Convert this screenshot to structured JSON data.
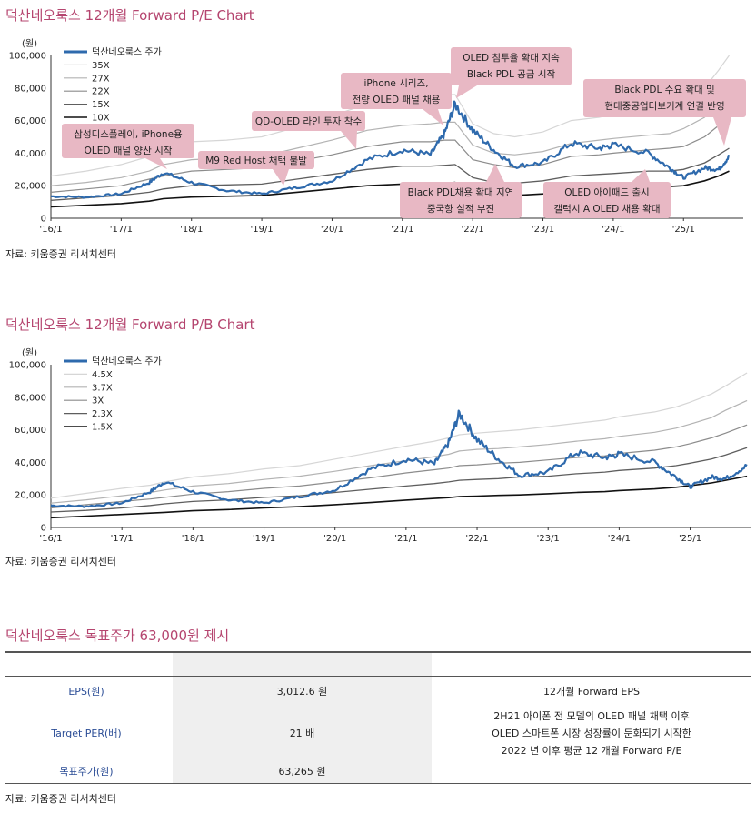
{
  "pe_chart": {
    "title": "덕산네오룩스  12개월  Forward P/E Chart",
    "unit": "(원)",
    "source": "자료: 키움증권 리서치센터",
    "callouts": [
      [
        "삼성디스플레이,  iPhone용",
        "OLED 패널 양산 시작"
      ],
      [
        "M9 Red Host 채택 불발"
      ],
      [
        "QD-OLED 라인 투자 착수"
      ],
      [
        "iPhone 시리즈,",
        "전량 OLED 패널 채용"
      ],
      [
        "OLED 침투율 확대 지속",
        "Black PDL 공급 시작"
      ],
      [
        "Black PDL 수요 확대 및",
        "현대중공업터보기계  연결 반영"
      ],
      [
        "Black PDL채용 확대 지연",
        "중국향 실적 부진"
      ],
      [
        "OLED 아이패드 출시",
        "갤럭시 A OLED 채용 확대"
      ]
    ]
  },
  "pb_chart": {
    "title": "덕산네오룩스  12개월  Forward P/B Chart",
    "unit": "(원)",
    "source": "자료: 키움증권 리서치센터"
  },
  "chart_data": [
    {
      "type": "line",
      "title": "덕산네오룩스  12개월  Forward P/E Chart",
      "ylabel": "(원)",
      "ylim": [
        0,
        100000
      ],
      "yticks": [
        "0",
        "20,000",
        "40,000",
        "60,000",
        "80,000",
        "100,000"
      ],
      "x_tick_labels": [
        "'16/1",
        "'17/1",
        "'18/1",
        "'19/1",
        "'20/1",
        "'21/1",
        "'22/1",
        "'23/1",
        "'24/1",
        "'25/1"
      ],
      "x": [
        2016.0,
        2016.5,
        2017.0,
        2017.4,
        2017.6,
        2018.0,
        2018.5,
        2019.0,
        2019.5,
        2020.0,
        2020.5,
        2021.0,
        2021.4,
        2021.6,
        2021.75,
        2022.0,
        2022.3,
        2022.6,
        2023.0,
        2023.4,
        2023.8,
        2024.0,
        2024.5,
        2024.8,
        2025.0,
        2025.3,
        2025.5,
        2025.65
      ],
      "series": [
        {
          "name": "덕산네오룩스  주가",
          "values": [
            13500,
            13000,
            15000,
            22000,
            28000,
            22000,
            17000,
            15000,
            19000,
            23000,
            36000,
            42000,
            39000,
            52000,
            70000,
            54000,
            42000,
            32000,
            34000,
            46000,
            43000,
            45000,
            40000,
            31000,
            25000,
            31000,
            30000,
            38000
          ]
        },
        {
          "name": "35X",
          "values": [
            26000,
            29000,
            33000,
            38000,
            42000,
            47000,
            48000,
            50000,
            56000,
            63000,
            70000,
            74000,
            75000,
            76000,
            76000,
            58000,
            52000,
            50000,
            53000,
            60000,
            62000,
            64000,
            66000,
            68000,
            71000,
            80000,
            91000,
            100000
          ]
        },
        {
          "name": "27X",
          "values": [
            20000,
            22000,
            25000,
            29000,
            33000,
            36000,
            37000,
            38000,
            43000,
            48000,
            54000,
            57000,
            58000,
            59000,
            59000,
            45000,
            40000,
            39000,
            41000,
            46000,
            48000,
            49000,
            51000,
            52000,
            55000,
            62000,
            70000,
            77000
          ]
        },
        {
          "name": "22X",
          "values": [
            16000,
            18000,
            20000,
            24000,
            26000,
            29000,
            30000,
            31000,
            35000,
            39000,
            44000,
            47000,
            47000,
            48000,
            48000,
            36000,
            33000,
            31000,
            33000,
            38000,
            39000,
            40000,
            42000,
            43000,
            44000,
            50000,
            57000,
            63000
          ]
        },
        {
          "name": "15X",
          "values": [
            11000,
            12500,
            14000,
            16000,
            18000,
            20000,
            20500,
            21000,
            24000,
            27000,
            30000,
            32000,
            32000,
            32500,
            33000,
            25000,
            22000,
            21500,
            23000,
            26000,
            27000,
            27500,
            29000,
            29000,
            30000,
            34000,
            39000,
            43000
          ]
        },
        {
          "name": "10X",
          "values": [
            7000,
            8000,
            9000,
            10500,
            12000,
            13000,
            13500,
            14000,
            16000,
            18000,
            20000,
            21000,
            21000,
            21500,
            22000,
            16500,
            14500,
            14000,
            15000,
            17500,
            18000,
            18000,
            19000,
            19500,
            20000,
            23000,
            26000,
            29000
          ]
        }
      ]
    },
    {
      "type": "line",
      "title": "덕산네오룩스  12개월  Forward P/B Chart",
      "ylabel": "(원)",
      "ylim": [
        0,
        100000
      ],
      "yticks": [
        "0",
        "20,000",
        "40,000",
        "60,000",
        "80,000",
        "100,000"
      ],
      "x_tick_labels": [
        "'16/1",
        "'17/1",
        "'18/1",
        "'19/1",
        "'20/1",
        "'21/1",
        "'22/1",
        "'23/1",
        "'24/1",
        "'25/1"
      ],
      "x": [
        2016.0,
        2016.5,
        2017.0,
        2017.4,
        2017.6,
        2018.0,
        2018.5,
        2019.0,
        2019.5,
        2020.0,
        2020.5,
        2021.0,
        2021.4,
        2021.6,
        2021.75,
        2022.0,
        2022.3,
        2022.6,
        2023.0,
        2023.4,
        2023.8,
        2024.0,
        2024.5,
        2024.8,
        2025.0,
        2025.3,
        2025.5,
        2025.8
      ],
      "series": [
        {
          "name": "덕산네오룩스  주가",
          "values": [
            13500,
            13000,
            15000,
            22000,
            28000,
            22000,
            17000,
            15000,
            19000,
            23000,
            36000,
            42000,
            39000,
            52000,
            70000,
            54000,
            42000,
            32000,
            34000,
            46000,
            43000,
            45000,
            40000,
            31000,
            25000,
            31000,
            30000,
            38000
          ]
        },
        {
          "name": "4.5X",
          "values": [
            18000,
            21000,
            24000,
            26000,
            28000,
            31000,
            33000,
            36000,
            38000,
            42000,
            46000,
            50000,
            53000,
            55000,
            57000,
            58000,
            59000,
            60000,
            62000,
            64000,
            66000,
            68000,
            71000,
            74000,
            77000,
            82000,
            87000,
            95000
          ]
        },
        {
          "name": "3.7X",
          "values": [
            15000,
            17000,
            19500,
            21500,
            23000,
            25500,
            27000,
            29500,
            31500,
            34500,
            38000,
            41000,
            43500,
            45000,
            47000,
            48000,
            48500,
            49500,
            51000,
            53000,
            54500,
            56000,
            58500,
            61000,
            63500,
            67500,
            72000,
            78000
          ]
        },
        {
          "name": "3X",
          "values": [
            12000,
            14000,
            16000,
            17500,
            18500,
            20500,
            22000,
            24000,
            25500,
            28000,
            30500,
            33500,
            35500,
            36500,
            38000,
            38500,
            39500,
            40000,
            41500,
            43000,
            44000,
            45500,
            47500,
            49500,
            51500,
            55000,
            58000,
            63000
          ]
        },
        {
          "name": "2.3X",
          "values": [
            9500,
            10500,
            12000,
            13500,
            14500,
            16000,
            17000,
            18500,
            19500,
            21500,
            23500,
            25500,
            27000,
            28000,
            29000,
            29500,
            30000,
            31000,
            31500,
            33000,
            34000,
            35000,
            36500,
            38000,
            39500,
            42000,
            44500,
            49000
          ]
        },
        {
          "name": "1.5X",
          "values": [
            6000,
            7000,
            8000,
            8800,
            9300,
            10300,
            11000,
            12000,
            12800,
            14000,
            15300,
            16800,
            17800,
            18300,
            19000,
            19300,
            19700,
            20000,
            20700,
            21500,
            22000,
            22700,
            23700,
            24700,
            25700,
            27400,
            29000,
            31500
          ]
        }
      ]
    }
  ],
  "valuation": {
    "title": "덕산네오룩스  목표주가 63,000원 제시",
    "rows": [
      {
        "label": "EPS(원)",
        "value": "3,012.6 원"
      },
      {
        "label": "Target PER(배)",
        "value": "21 배"
      },
      {
        "label": "목표주가(원)",
        "value": "63,265 원"
      }
    ],
    "notes": [
      "12개월  Forward EPS",
      "2H21 아이폰 전 모델의 OLED 패널 채택 이후",
      "OLED 스마트폰 시장 성장률이 둔화되기 시작한",
      "2022 년 이후 평균 12 개월 Forward P/E"
    ],
    "source": "자료: 키움증권 리서치센터"
  },
  "colors": {
    "title": "#b5456f",
    "price_line": "#2e6aad",
    "callout_fill": "#e8b8c4",
    "label_blue": "#2b4d96"
  }
}
